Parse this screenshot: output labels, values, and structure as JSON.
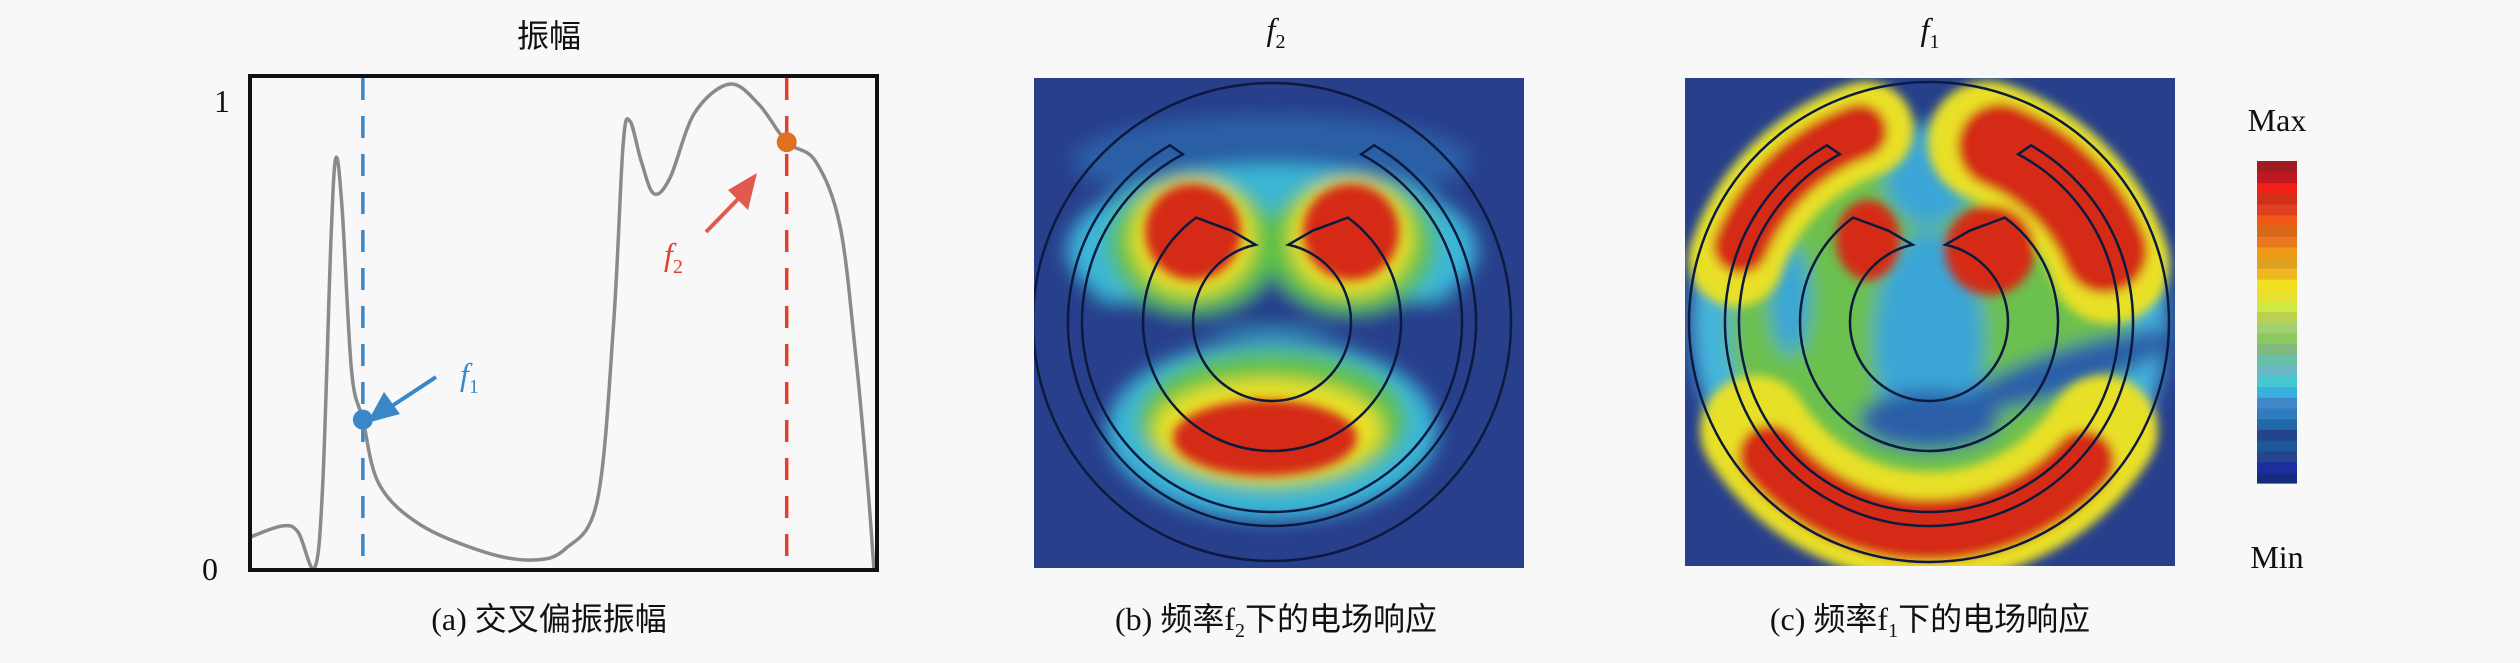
{
  "panel_a": {
    "title": "振幅",
    "caption": "(a) 交叉偏振振幅",
    "y_tick_top": "1",
    "y_tick_bottom": "0",
    "marker_f1": {
      "main": "f",
      "sub": "1",
      "color": "#3a87c8"
    },
    "marker_f2": {
      "main": "f",
      "sub": "2",
      "color": "#e0402c"
    }
  },
  "panel_b": {
    "title": {
      "main": "f",
      "sub": "2"
    },
    "caption": {
      "prefix": "(b) 频率f",
      "sub": "2",
      "suffix": "下的电场响应"
    }
  },
  "panel_c": {
    "title": {
      "main": "f",
      "sub": "1"
    },
    "caption": {
      "prefix": "(c) 频率f",
      "sub": "1",
      "suffix": "下的电场响应"
    }
  },
  "colorbar": {
    "max_label": "Max",
    "min_label": "Min",
    "colors": [
      "#142c80",
      "#1a2ea0",
      "#24448e",
      "#1c5898",
      "#24448e",
      "#2068a8",
      "#307cc0",
      "#4088c8",
      "#38b0e0",
      "#48c8d0",
      "#68b8c8",
      "#68c0a8",
      "#80b880",
      "#8cc860",
      "#a0d070",
      "#bcd050",
      "#d0e840",
      "#e8e030",
      "#f0e020",
      "#f0b820",
      "#e0a020",
      "#f09818",
      "#e87820",
      "#d86818",
      "#f05818",
      "#e04020",
      "#d03018",
      "#f02018",
      "#c01820",
      "#a01c20"
    ]
  },
  "chart_data": {
    "type": "line",
    "title": "振幅",
    "xlabel": "",
    "ylabel": "",
    "y_ticks": [
      "0",
      "1"
    ],
    "ylim": [
      0,
      1.05
    ],
    "xlim": [
      0,
      100
    ],
    "grid": false,
    "line_color": "#8a8a8a",
    "series": [
      {
        "points": [
          [
            0,
            0.066
          ],
          [
            5.2,
            0.09
          ],
          [
            7.7,
            0.076
          ],
          [
            10.3,
            0.0
          ],
          [
            11.6,
            0.179
          ],
          [
            12.9,
            0.697
          ],
          [
            13.7,
            0.876
          ],
          [
            14.7,
            0.766
          ],
          [
            16.2,
            0.421
          ],
          [
            18.0,
            0.317
          ],
          [
            20.6,
            0.179
          ],
          [
            27.1,
            0.093
          ],
          [
            37.4,
            0.034
          ],
          [
            45.1,
            0.017
          ],
          [
            50.3,
            0.041
          ],
          [
            55.4,
            0.145
          ],
          [
            58.0,
            0.524
          ],
          [
            59.5,
            0.903
          ],
          [
            60.6,
            0.955
          ],
          [
            62.4,
            0.869
          ],
          [
            64.4,
            0.8
          ],
          [
            67.0,
            0.834
          ],
          [
            70.9,
            0.972
          ],
          [
            76.5,
            1.034
          ],
          [
            81.2,
            0.99
          ],
          [
            85.6,
            0.91
          ],
          [
            90.2,
            0.869
          ],
          [
            94.1,
            0.731
          ],
          [
            96.6,
            0.455
          ],
          [
            98.5,
            0.179
          ],
          [
            99.5,
            0.0
          ]
        ]
      }
    ],
    "vlines": [
      {
        "x": 18.0,
        "label": "f1",
        "color": "#3a87c8",
        "point_y": 0.317
      },
      {
        "x": 85.6,
        "label": "f2",
        "color": "#e0402c",
        "point_y": 0.91,
        "point_color": "#e07020"
      }
    ]
  }
}
